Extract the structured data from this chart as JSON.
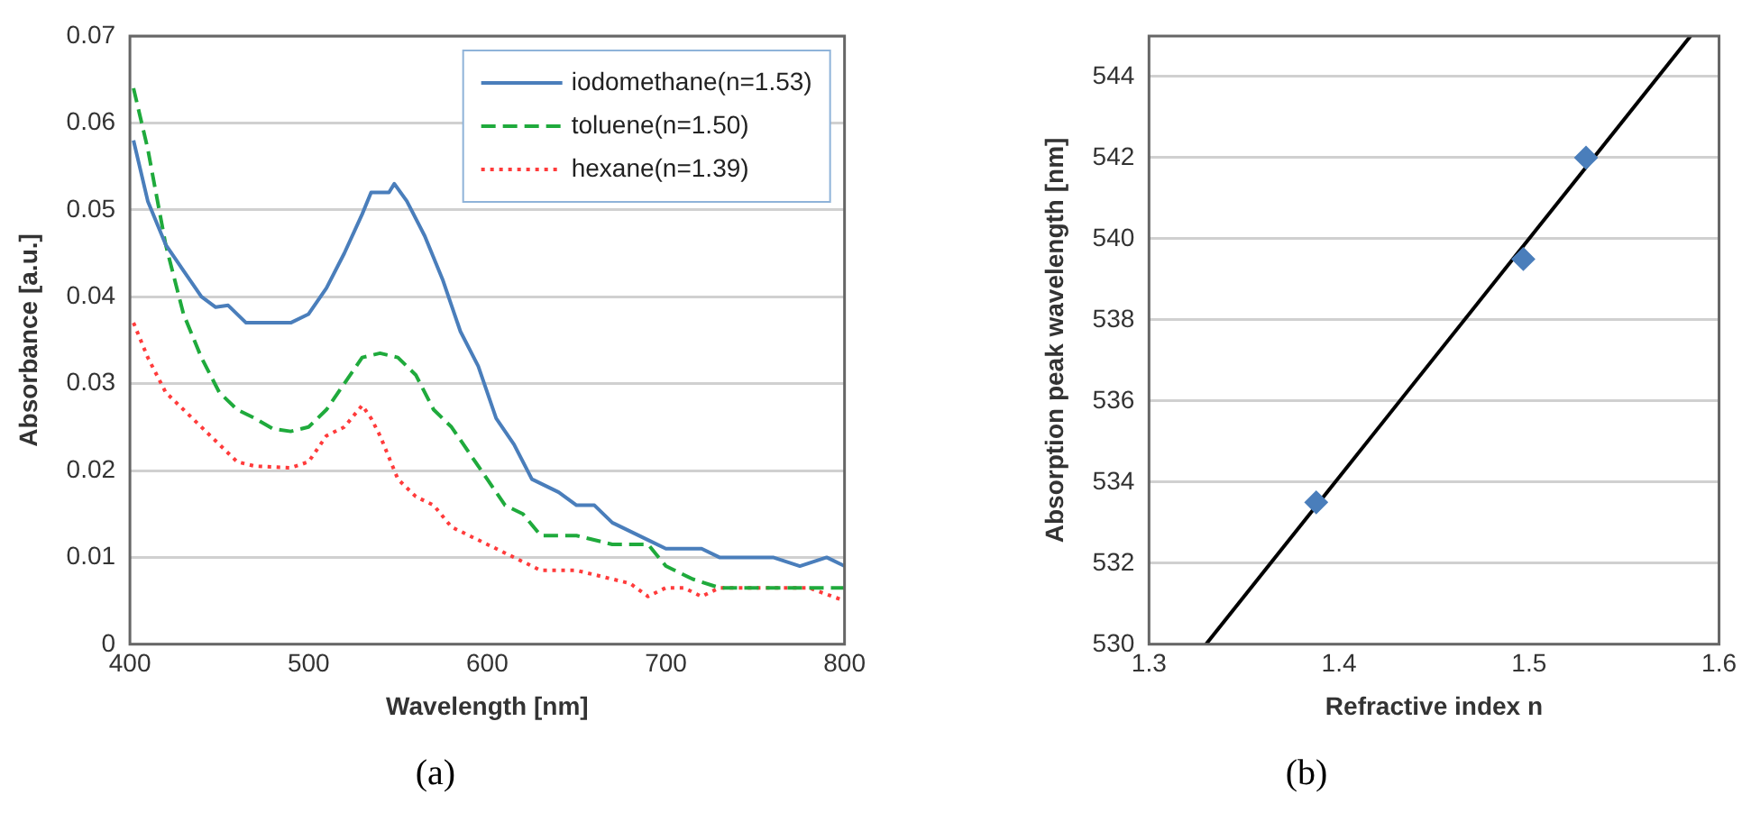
{
  "chart_data": [
    {
      "type": "line",
      "xlabel": "Wavelength [nm]",
      "ylabel": "Absorbance [a.u.]",
      "annotations": [
        "(a)"
      ],
      "xlim": [
        400,
        800
      ],
      "xticks": [
        400,
        500,
        600,
        700,
        800
      ],
      "ylim": [
        0,
        0.07
      ],
      "yticks": [
        0,
        0.01,
        0.02,
        0.03,
        0.04,
        0.05,
        0.06,
        0.07
      ],
      "grid": "y",
      "legend": "top right",
      "marker": "none",
      "series": [
        {
          "name": "iodomethane(n=1.53)",
          "color": "#4a7ebb",
          "line_style": "solid",
          "x": [
            402,
            410,
            420,
            430,
            440,
            448,
            455,
            465,
            475,
            490,
            500,
            510,
            520,
            530,
            535,
            545,
            548,
            555,
            565,
            575,
            585,
            595,
            605,
            615,
            625,
            640,
            650,
            660,
            670,
            690,
            700,
            720,
            730,
            760,
            775,
            790,
            800
          ],
          "values": [
            0.058,
            0.051,
            0.046,
            0.043,
            0.04,
            0.0388,
            0.039,
            0.037,
            0.037,
            0.037,
            0.038,
            0.041,
            0.045,
            0.0495,
            0.052,
            0.052,
            0.053,
            0.051,
            0.047,
            0.042,
            0.036,
            0.032,
            0.026,
            0.023,
            0.019,
            0.0175,
            0.016,
            0.016,
            0.014,
            0.012,
            0.011,
            0.011,
            0.01,
            0.01,
            0.009,
            0.01,
            0.009
          ]
        },
        {
          "name": "toluene(n=1.50)",
          "color": "#1faa3c",
          "line_style": "dashed",
          "x": [
            402,
            410,
            420,
            430,
            440,
            450,
            460,
            470,
            480,
            490,
            500,
            510,
            520,
            530,
            540,
            550,
            560,
            570,
            580,
            590,
            600,
            610,
            620,
            630,
            650,
            670,
            690,
            700,
            715,
            730,
            800
          ],
          "values": [
            0.064,
            0.057,
            0.046,
            0.038,
            0.033,
            0.029,
            0.027,
            0.026,
            0.0248,
            0.0245,
            0.025,
            0.027,
            0.03,
            0.033,
            0.0335,
            0.033,
            0.031,
            0.027,
            0.025,
            0.022,
            0.019,
            0.016,
            0.015,
            0.0125,
            0.0125,
            0.0115,
            0.0115,
            0.009,
            0.0075,
            0.0065,
            0.0065
          ]
        },
        {
          "name": "hexane(n=1.39)",
          "color": "#ff3b3b",
          "line_style": "dotted",
          "x": [
            402,
            410,
            420,
            430,
            440,
            450,
            460,
            470,
            490,
            500,
            510,
            520,
            530,
            535,
            540,
            550,
            560,
            570,
            580,
            600,
            620,
            630,
            650,
            670,
            680,
            690,
            700,
            710,
            720,
            730,
            780,
            800
          ],
          "values": [
            0.037,
            0.033,
            0.029,
            0.027,
            0.025,
            0.023,
            0.021,
            0.0205,
            0.0203,
            0.021,
            0.024,
            0.025,
            0.0275,
            0.026,
            0.024,
            0.019,
            0.017,
            0.016,
            0.0135,
            0.0115,
            0.0095,
            0.0085,
            0.0085,
            0.0075,
            0.007,
            0.0055,
            0.0065,
            0.0065,
            0.0055,
            0.0065,
            0.0065,
            0.005
          ]
        }
      ]
    },
    {
      "type": "scatter",
      "xlabel": "Refractive index n",
      "ylabel": "Absorption peak wavelength [nm]",
      "annotations": [
        "(b)"
      ],
      "xlim": [
        1.3,
        1.6
      ],
      "xticks": [
        1.3,
        1.4,
        1.5,
        1.6
      ],
      "ylim": [
        530,
        545
      ],
      "yticks": [
        530,
        532,
        534,
        536,
        538,
        540,
        542,
        544
      ],
      "grid": "y",
      "marker": "diamond",
      "series": [
        {
          "color": "#4a7ebb",
          "x": [
            1.388,
            1.497,
            1.53
          ],
          "values": [
            533.5,
            539.5,
            542
          ]
        },
        {
          "type": "line",
          "color": "#000000",
          "line_style": "solid",
          "marker": "none",
          "x": [
            1.33,
            1.585
          ],
          "values": [
            530,
            545
          ]
        }
      ]
    }
  ]
}
